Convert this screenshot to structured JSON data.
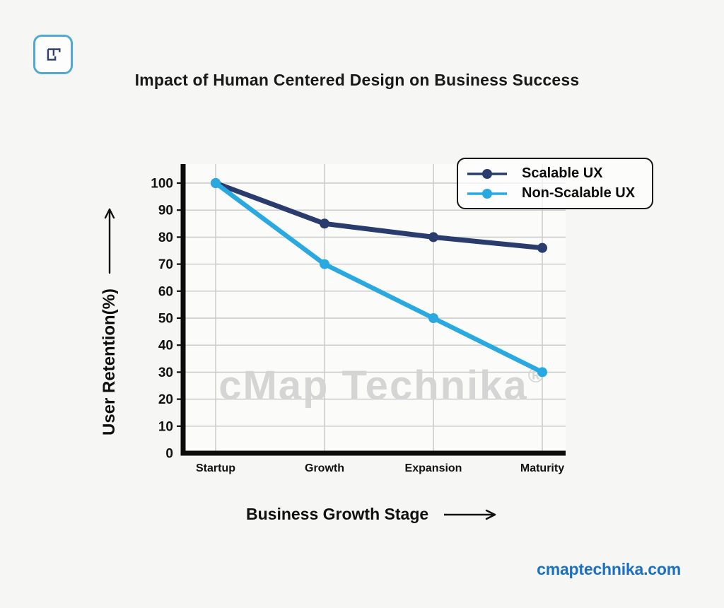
{
  "page": {
    "footer_link": "cmaptechnika.com",
    "watermark_text": "cMap Technika",
    "watermark_reg": "®",
    "background_color": "#f6f6f4",
    "footer_color": "#1a70c2",
    "logo_border_color": "#4fa9d1",
    "logo_glyph_color": "#31406f"
  },
  "icons": {
    "logo": "cmap-technika-mark",
    "y_axis_arrow": "arrow-up",
    "x_axis_arrow": "arrow-right"
  },
  "chart_data": {
    "type": "line",
    "title": "Impact of Human Centered Design on Business Success",
    "categories": [
      "Startup",
      "Growth",
      "Expansion",
      "Maturity"
    ],
    "series": [
      {
        "name": "Scalable UX",
        "color": "#2a3c6e",
        "values": [
          100,
          85,
          80,
          76
        ]
      },
      {
        "name": "Non-Scalable UX",
        "color": "#29a9e1",
        "values": [
          100,
          70,
          50,
          30
        ]
      }
    ],
    "xlabel": "Business Growth Stage",
    "ylabel": "User Retention(%)",
    "ylim": [
      0,
      100
    ],
    "ytick_step": 10,
    "yticks": [
      0,
      10,
      20,
      30,
      40,
      50,
      60,
      70,
      80,
      90,
      100
    ],
    "grid": true,
    "legend_position": "top-right",
    "colors": {
      "axis": "#0c0c0c",
      "grid": "#c8c8c8",
      "tick_text": "#111111",
      "plot_bg": "#fbfbf9",
      "watermark": "#d4d4d4"
    }
  }
}
